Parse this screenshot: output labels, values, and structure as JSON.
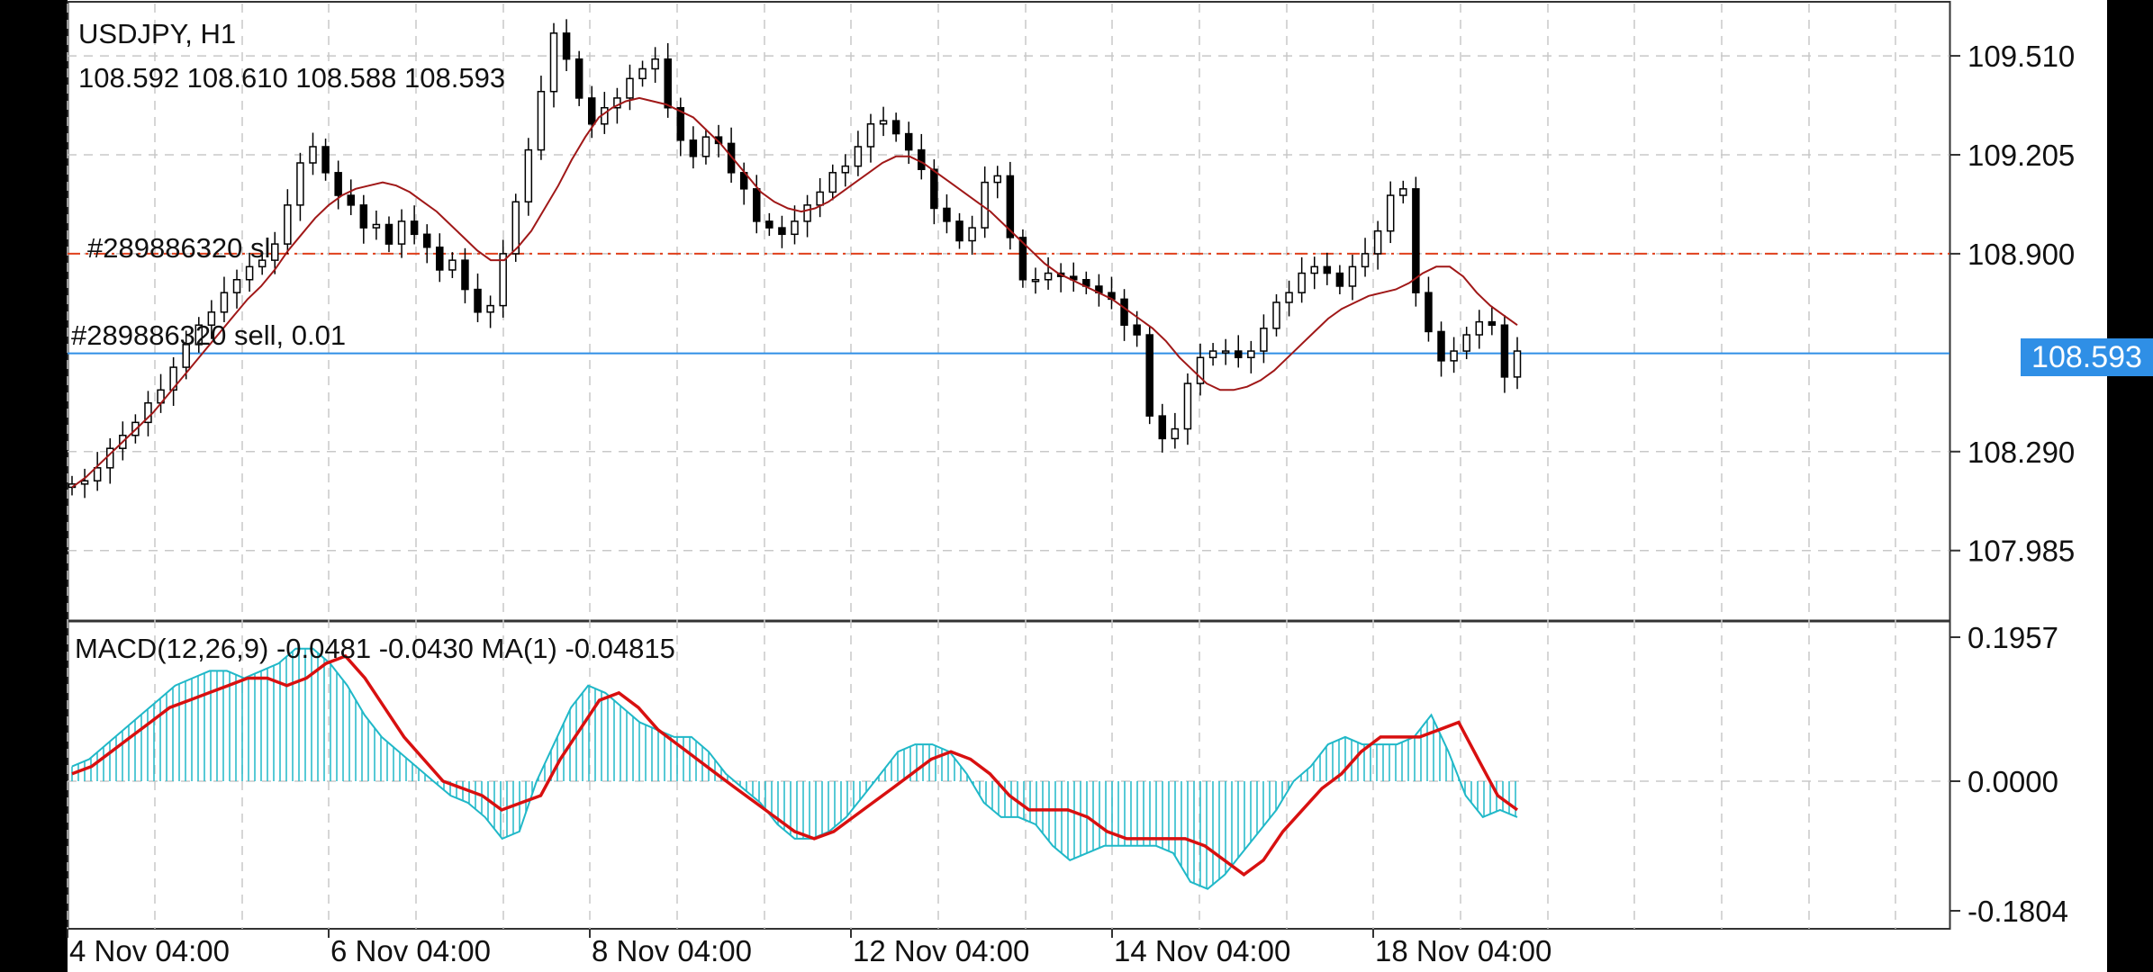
{
  "chart_header": {
    "symbol": "USDJPY, H1",
    "ohlc": "108.592 108.610 108.588 108.593"
  },
  "orders": {
    "sl_label": "#289886320 sl",
    "position_label": "#289886320 sell, 0.01"
  },
  "current_price": "108.593",
  "colors": {
    "background": "#ffffff",
    "grid": "#c8c8c8",
    "sl_line": "#e0401c",
    "price_line": "#2f8fe6",
    "ma_line": "#a01818",
    "macd_hist": "#20b8c8",
    "signal_line": "#d81010",
    "candles": "#000000"
  },
  "indicator_header": "MACD(12,26,9) -0.0481 -0.0430 MA(1) -0.04815",
  "price_axis": [
    "109.510",
    "109.205",
    "108.900",
    "108.290",
    "107.985"
  ],
  "macd_axis": [
    "0.1957",
    "0.0000",
    "-0.1804"
  ],
  "time_axis": [
    "4 Nov 04:00",
    "6 Nov 04:00",
    "8 Nov 04:00",
    "12 Nov 04:00",
    "14 Nov 04:00",
    "18 Nov 04:00"
  ],
  "chart_data": {
    "type": "candlestick",
    "symbol": "USDJPY",
    "timeframe": "H1",
    "price_range": [
      107.79,
      109.66
    ],
    "close_path": [
      108.19,
      108.2,
      108.24,
      108.3,
      108.34,
      108.38,
      108.44,
      108.48,
      108.55,
      108.62,
      108.68,
      108.72,
      108.78,
      108.82,
      108.86,
      108.88,
      108.93,
      109.05,
      109.18,
      109.23,
      109.15,
      109.08,
      109.05,
      108.98,
      108.99,
      108.93,
      109.0,
      108.96,
      108.92,
      108.85,
      108.88,
      108.79,
      108.72,
      108.74,
      108.9,
      109.06,
      109.22,
      109.4,
      109.58,
      109.5,
      109.38,
      109.3,
      109.35,
      109.38,
      109.44,
      109.47,
      109.5,
      109.35,
      109.25,
      109.2,
      109.26,
      109.24,
      109.15,
      109.1,
      109.0,
      108.98,
      108.96,
      109.0,
      109.05,
      109.09,
      109.15,
      109.17,
      109.23,
      109.3,
      109.31,
      109.27,
      109.22,
      109.16,
      109.04,
      109.0,
      108.94,
      108.98,
      109.12,
      109.14,
      108.95,
      108.82,
      108.82,
      108.84,
      108.83,
      108.82,
      108.8,
      108.78,
      108.76,
      108.68,
      108.65,
      108.4,
      108.33,
      108.36,
      108.5,
      108.58,
      108.6,
      108.6,
      108.58,
      108.6,
      108.67,
      108.75,
      108.78,
      108.84,
      108.86,
      108.84,
      108.8,
      108.86,
      108.9,
      108.97,
      109.08,
      109.1,
      108.78,
      108.66,
      108.57,
      108.6,
      108.65,
      108.69,
      108.68,
      108.52,
      108.6
    ],
    "ma_path": [
      108.18,
      108.21,
      108.25,
      108.29,
      108.33,
      108.37,
      108.41,
      108.46,
      108.51,
      108.56,
      108.61,
      108.66,
      108.71,
      108.76,
      108.8,
      108.85,
      108.91,
      108.96,
      109.01,
      109.05,
      109.08,
      109.1,
      109.11,
      109.12,
      109.11,
      109.09,
      109.06,
      109.03,
      108.99,
      108.95,
      108.91,
      108.88,
      108.88,
      108.92,
      108.97,
      109.04,
      109.11,
      109.19,
      109.26,
      109.32,
      109.35,
      109.37,
      109.38,
      109.37,
      109.36,
      109.34,
      109.32,
      109.28,
      109.24,
      109.19,
      109.14,
      109.09,
      109.06,
      109.04,
      109.03,
      109.04,
      109.06,
      109.09,
      109.12,
      109.15,
      109.18,
      109.2,
      109.2,
      109.18,
      109.15,
      109.12,
      109.09,
      109.06,
      109.03,
      108.99,
      108.95,
      108.91,
      108.87,
      108.84,
      108.82,
      108.8,
      108.78,
      108.76,
      108.73,
      108.7,
      108.67,
      108.63,
      108.58,
      108.54,
      108.5,
      108.48,
      108.48,
      108.49,
      108.51,
      108.54,
      108.58,
      108.62,
      108.66,
      108.7,
      108.73,
      108.75,
      108.77,
      108.78,
      108.79,
      108.81,
      108.84,
      108.86,
      108.86,
      108.83,
      108.78,
      108.74,
      108.71,
      108.68
    ],
    "macd_range": [
      -0.1804,
      0.1957
    ],
    "macd_hist": [
      0.02,
      0.03,
      0.05,
      0.07,
      0.09,
      0.11,
      0.13,
      0.14,
      0.15,
      0.15,
      0.14,
      0.15,
      0.16,
      0.18,
      0.18,
      0.16,
      0.13,
      0.09,
      0.06,
      0.04,
      0.02,
      0.0,
      -0.02,
      -0.03,
      -0.05,
      -0.08,
      -0.07,
      0.0,
      0.05,
      0.1,
      0.13,
      0.12,
      0.1,
      0.08,
      0.07,
      0.06,
      0.06,
      0.04,
      0.01,
      -0.01,
      -0.03,
      -0.06,
      -0.08,
      -0.08,
      -0.07,
      -0.05,
      -0.02,
      0.01,
      0.04,
      0.05,
      0.05,
      0.04,
      0.01,
      -0.03,
      -0.05,
      -0.05,
      -0.06,
      -0.09,
      -0.11,
      -0.1,
      -0.09,
      -0.09,
      -0.09,
      -0.09,
      -0.1,
      -0.14,
      -0.15,
      -0.13,
      -0.1,
      -0.07,
      -0.04,
      0.0,
      0.02,
      0.05,
      0.06,
      0.05,
      0.05,
      0.05,
      0.06,
      0.09,
      0.04,
      -0.02,
      -0.05,
      -0.04,
      -0.05
    ],
    "signal": [
      0.01,
      0.02,
      0.04,
      0.06,
      0.08,
      0.1,
      0.11,
      0.12,
      0.13,
      0.14,
      0.14,
      0.13,
      0.14,
      0.16,
      0.17,
      0.14,
      0.1,
      0.06,
      0.03,
      0.0,
      -0.01,
      -0.02,
      -0.04,
      -0.03,
      -0.02,
      0.03,
      0.07,
      0.11,
      0.12,
      0.1,
      0.07,
      0.05,
      0.03,
      0.01,
      -0.01,
      -0.03,
      -0.05,
      -0.07,
      -0.08,
      -0.07,
      -0.05,
      -0.03,
      -0.01,
      0.01,
      0.03,
      0.04,
      0.03,
      0.01,
      -0.02,
      -0.04,
      -0.04,
      -0.04,
      -0.05,
      -0.07,
      -0.08,
      -0.08,
      -0.08,
      -0.08,
      -0.09,
      -0.11,
      -0.13,
      -0.11,
      -0.07,
      -0.04,
      -0.01,
      0.01,
      0.04,
      0.06,
      0.06,
      0.06,
      0.07,
      0.08,
      0.03,
      -0.02,
      -0.04
    ]
  }
}
